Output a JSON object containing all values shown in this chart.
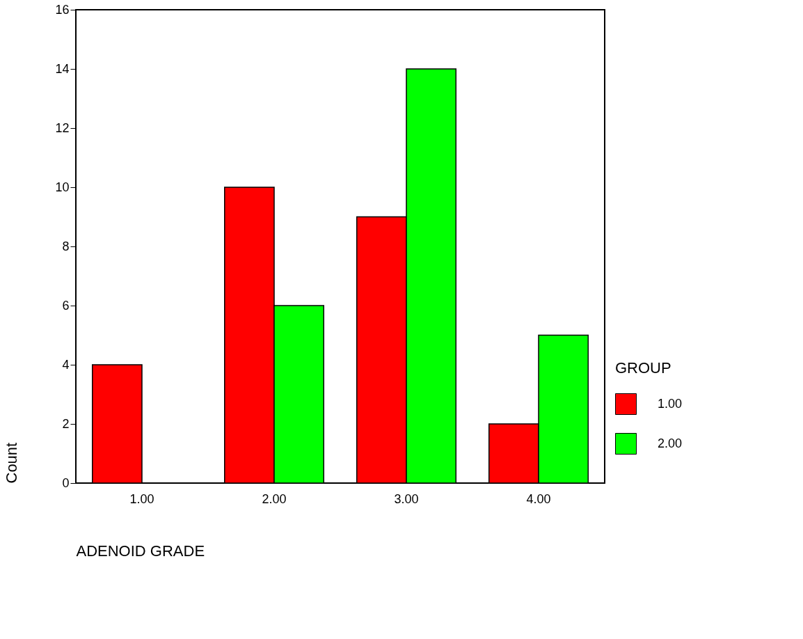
{
  "chart_data": {
    "type": "bar",
    "xlabel": "ADENOID  GRADE",
    "ylabel": "Count",
    "legend_title": "GROUP",
    "categories": [
      "1.00",
      "2.00",
      "3.00",
      "4.00"
    ],
    "series": [
      {
        "name": "1.00",
        "color": "#ff0000",
        "values": [
          4,
          10,
          9,
          2
        ]
      },
      {
        "name": "2.00",
        "color": "#00ff00",
        "values": [
          null,
          6,
          14,
          5
        ]
      }
    ],
    "ylim": [
      0,
      16
    ],
    "yticks": [
      0,
      2,
      4,
      6,
      8,
      10,
      12,
      14,
      16
    ],
    "grid": false,
    "legend": "right"
  }
}
